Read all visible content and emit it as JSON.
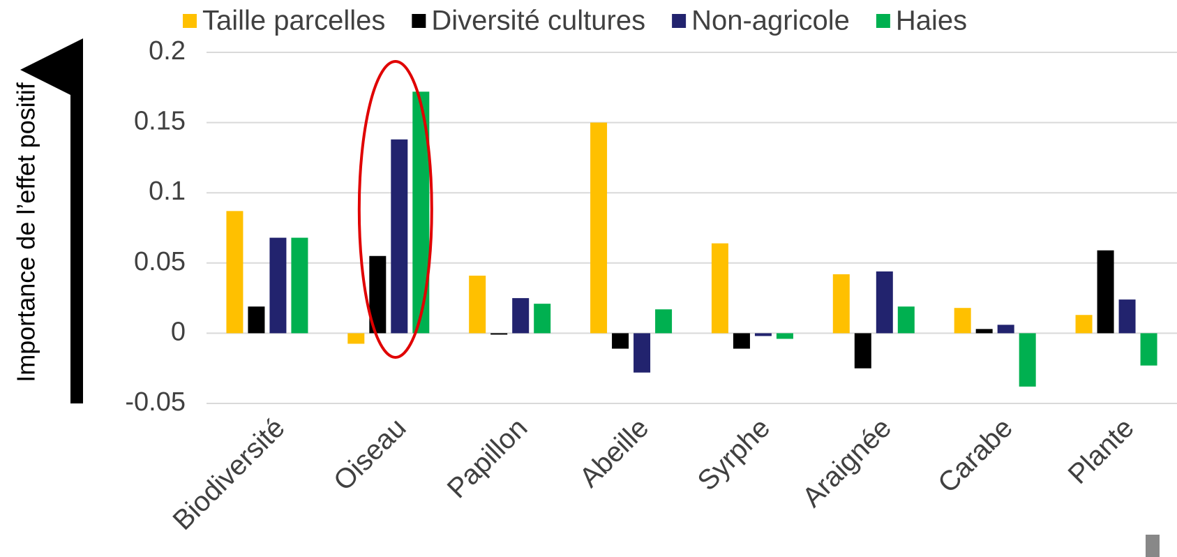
{
  "chart_data": {
    "type": "bar",
    "y_label": "Importance de l’effet positif",
    "categories": [
      "Biodiversité",
      "Oiseau",
      "Papillon",
      "Abeille",
      "Syrphe",
      "Araignée",
      "Carabe",
      "Plante"
    ],
    "series": [
      {
        "name": "Taille parcelles",
        "color": "#ffc000",
        "values": [
          0.087,
          -0.0075,
          0.041,
          0.15,
          0.064,
          0.042,
          0.018,
          0.013
        ]
      },
      {
        "name": "Diversité cultures",
        "color": "#000000",
        "values": [
          0.019,
          0.055,
          -0.001,
          -0.011,
          -0.011,
          -0.025,
          0.003,
          0.059
        ]
      },
      {
        "name": "Non-agricole",
        "color": "#22236e",
        "values": [
          0.068,
          0.138,
          0.025,
          -0.028,
          -0.002,
          0.044,
          0.006,
          0.024
        ]
      },
      {
        "name": "Haies",
        "color": "#00b050",
        "values": [
          0.068,
          0.172,
          0.021,
          0.017,
          -0.004,
          0.019,
          -0.038,
          -0.023
        ]
      }
    ],
    "ylim": [
      -0.05,
      0.2
    ],
    "yticks": [
      -0.05,
      0,
      0.05,
      0.1,
      0.15,
      0.2
    ],
    "grid": true
  }
}
